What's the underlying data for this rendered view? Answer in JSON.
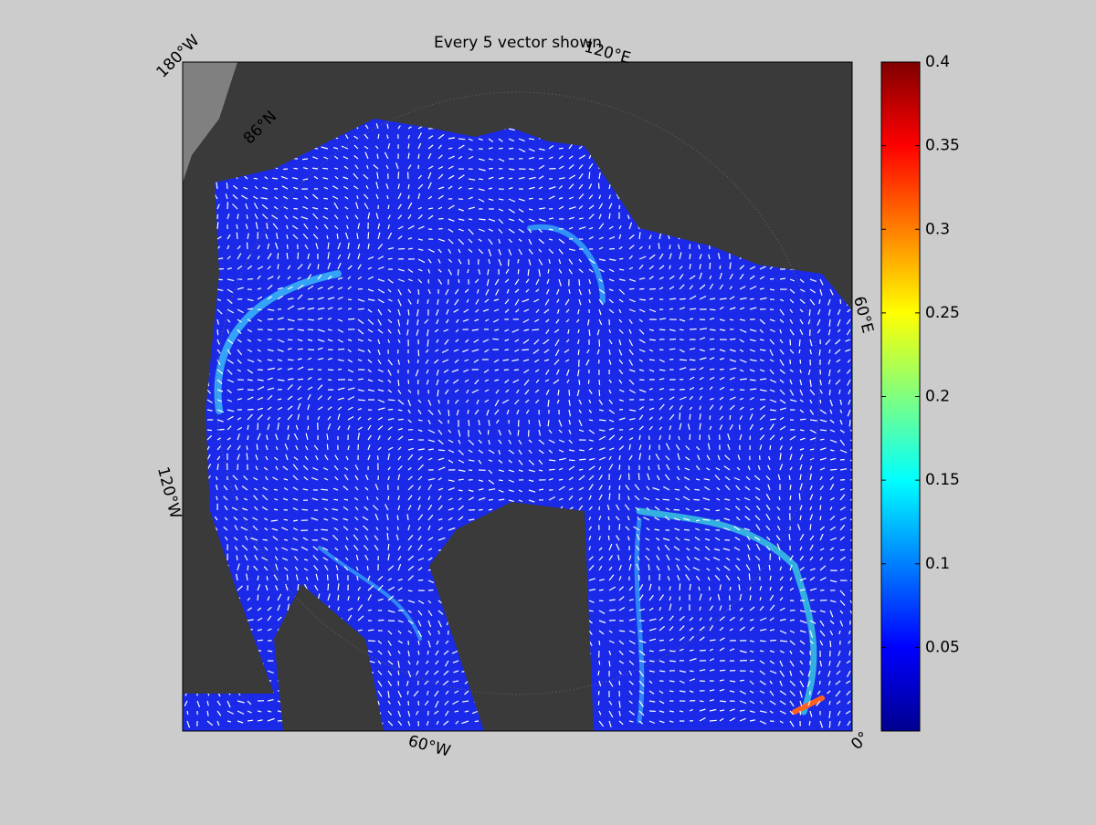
{
  "title": "Every 5 vector shown",
  "map_labels": [
    "180°W",
    "120°E",
    "60°E",
    "0°",
    "60°W",
    "120°W",
    "86°N"
  ],
  "colorbar": {
    "clim": [
      0,
      0.4
    ],
    "ticks": [
      0.05,
      0.1,
      0.15,
      0.2,
      0.25,
      0.3,
      0.35,
      0.4
    ]
  }
}
